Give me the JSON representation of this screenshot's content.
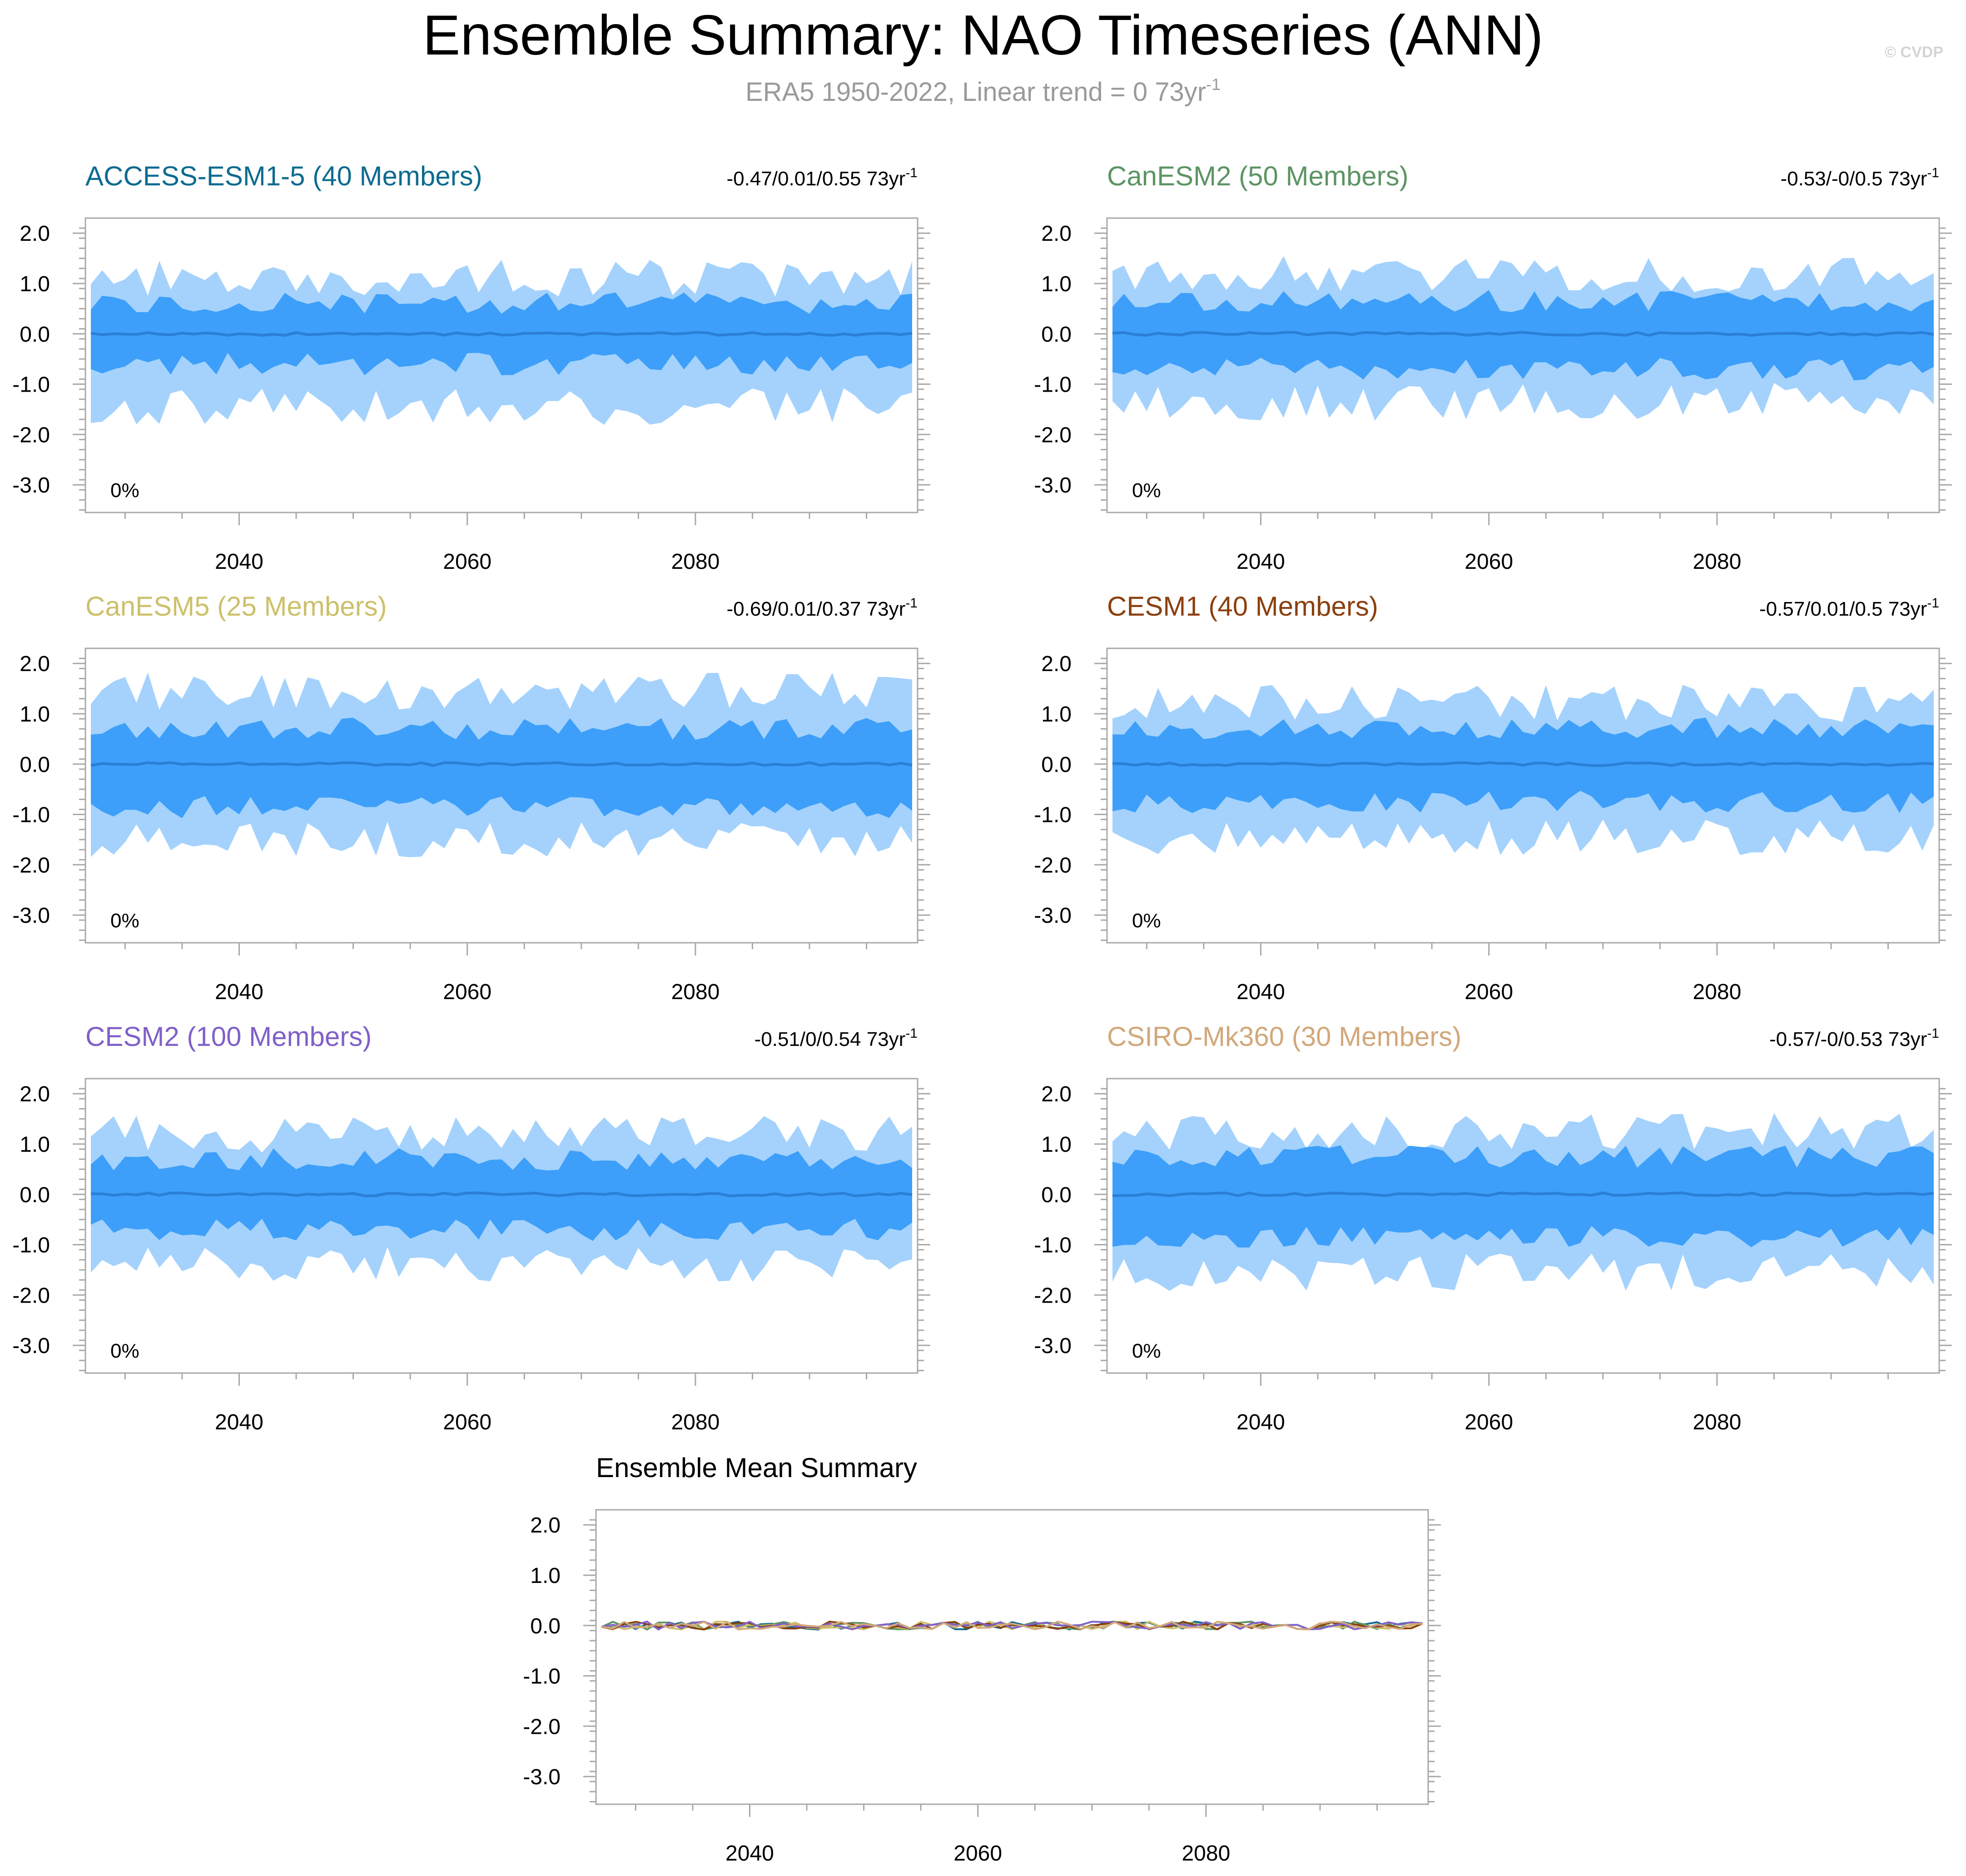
{
  "figure": {
    "title": "Ensemble Summary: NAO Timeseries (ANN)",
    "subtitle": "ERA5 1950-2022, Linear trend = 0 73yr",
    "subtitle_sup": "-1",
    "credit": "© CVDP"
  },
  "colors": {
    "outer_band": "#a4d2fc",
    "inner_band": "#3d9ff9",
    "mean_line": "#2a7fd6"
  },
  "chart_data": [
    {
      "type": "area",
      "title": "ACCESS-ESM1-5 (40 Members)",
      "title_color": "#0d6b8f",
      "stats": "-0.47/0.01/0.55 73yr",
      "stats_sup": "-1",
      "annotation": "0%",
      "x_range": [
        2027,
        2099
      ],
      "ylim": [
        -3.55,
        2.3
      ],
      "yticks": [
        "2.0",
        "1.0",
        "0.0",
        "-1.0",
        "-2.0",
        "-3.0"
      ],
      "xticks": [
        "2040",
        "2060",
        "2080"
      ],
      "series": {
        "min": -1.45,
        "p10": -0.6,
        "mean": 0.0,
        "p90": 0.6,
        "max": 1.1
      },
      "seed": 11
    },
    {
      "type": "area",
      "title": "CanESM2 (50 Members)",
      "title_color": "#5d9464",
      "stats": "-0.53/-0/0.5 73yr",
      "stats_sup": "-1",
      "annotation": "0%",
      "x_range": [
        2027,
        2099
      ],
      "ylim": [
        -3.55,
        2.3
      ],
      "yticks": [
        "2.0",
        "1.0",
        "0.0",
        "-1.0",
        "-2.0",
        "-3.0"
      ],
      "xticks": [
        "2040",
        "2060",
        "2080"
      ],
      "series": {
        "min": -1.35,
        "p10": -0.7,
        "mean": 0.0,
        "p90": 0.65,
        "max": 1.2
      },
      "seed": 23
    },
    {
      "type": "area",
      "title": "CanESM5 (25 Members)",
      "title_color": "#cdc06a",
      "stats": "-0.69/0.01/0.37 73yr",
      "stats_sup": "-1",
      "annotation": "0%",
      "x_range": [
        2027,
        2099
      ],
      "ylim": [
        -3.55,
        2.3
      ],
      "yticks": [
        "2.0",
        "1.0",
        "0.0",
        "-1.0",
        "-2.0",
        "-3.0"
      ],
      "xticks": [
        "2040",
        "2060",
        "2080"
      ],
      "series": {
        "min": -1.5,
        "p10": -0.85,
        "mean": 0.0,
        "p90": 0.7,
        "max": 1.45
      },
      "seed": 37
    },
    {
      "type": "area",
      "title": "CESM1 (40 Members)",
      "title_color": "#8b3f0e",
      "stats": "-0.57/0.01/0.5 73yr",
      "stats_sup": "-1",
      "annotation": "0%",
      "x_range": [
        2027,
        2099
      ],
      "ylim": [
        -3.55,
        2.3
      ],
      "yticks": [
        "2.0",
        "1.0",
        "0.0",
        "-1.0",
        "-2.0",
        "-3.0"
      ],
      "xticks": [
        "2040",
        "2060",
        "2080"
      ],
      "series": {
        "min": -1.45,
        "p10": -0.75,
        "mean": 0.0,
        "p90": 0.7,
        "max": 1.2
      },
      "seed": 53
    },
    {
      "type": "area",
      "title": "CESM2 (100 Members)",
      "title_color": "#8060c8",
      "stats": "-0.51/0/0.54 73yr",
      "stats_sup": "-1",
      "annotation": "0%",
      "x_range": [
        2027,
        2099
      ],
      "ylim": [
        -3.55,
        2.3
      ],
      "yticks": [
        "2.0",
        "1.0",
        "0.0",
        "-1.0",
        "-2.0",
        "-3.0"
      ],
      "xticks": [
        "2040",
        "2060",
        "2080"
      ],
      "series": {
        "min": -1.4,
        "p10": -0.7,
        "mean": 0.0,
        "p90": 0.7,
        "max": 1.2
      },
      "seed": 71
    },
    {
      "type": "area",
      "title": "CSIRO-Mk360 (30 Members)",
      "title_color": "#d2a87a",
      "stats": "-0.57/-0/0.53 73yr",
      "stats_sup": "-1",
      "annotation": "0%",
      "x_range": [
        2027,
        2099
      ],
      "ylim": [
        -3.55,
        2.3
      ],
      "yticks": [
        "2.0",
        "1.0",
        "0.0",
        "-1.0",
        "-2.0",
        "-3.0"
      ],
      "xticks": [
        "2040",
        "2060",
        "2080"
      ],
      "series": {
        "min": -1.55,
        "p10": -0.85,
        "mean": 0.0,
        "p90": 0.75,
        "max": 1.25
      },
      "seed": 97
    },
    {
      "type": "line",
      "title": "Ensemble Mean Summary",
      "title_color": "#000000",
      "x_range": [
        2027,
        2099
      ],
      "ylim": [
        -3.55,
        2.3
      ],
      "yticks": [
        "2.0",
        "1.0",
        "0.0",
        "-1.0",
        "-2.0",
        "-3.0"
      ],
      "xticks": [
        "2040",
        "2060",
        "2080"
      ],
      "series": [
        {
          "name": "ACCESS-ESM1-5",
          "color": "#0d6b8f",
          "mean": 0.0
        },
        {
          "name": "CanESM2",
          "color": "#5d9464",
          "mean": 0.0
        },
        {
          "name": "CanESM5",
          "color": "#cdc06a",
          "mean": 0.0
        },
        {
          "name": "CESM1",
          "color": "#8b3f0e",
          "mean": 0.0
        },
        {
          "name": "CESM2",
          "color": "#8060c8",
          "mean": 0.0
        },
        {
          "name": "CSIRO-Mk360",
          "color": "#d2a87a",
          "mean": 0.0
        }
      ]
    }
  ]
}
